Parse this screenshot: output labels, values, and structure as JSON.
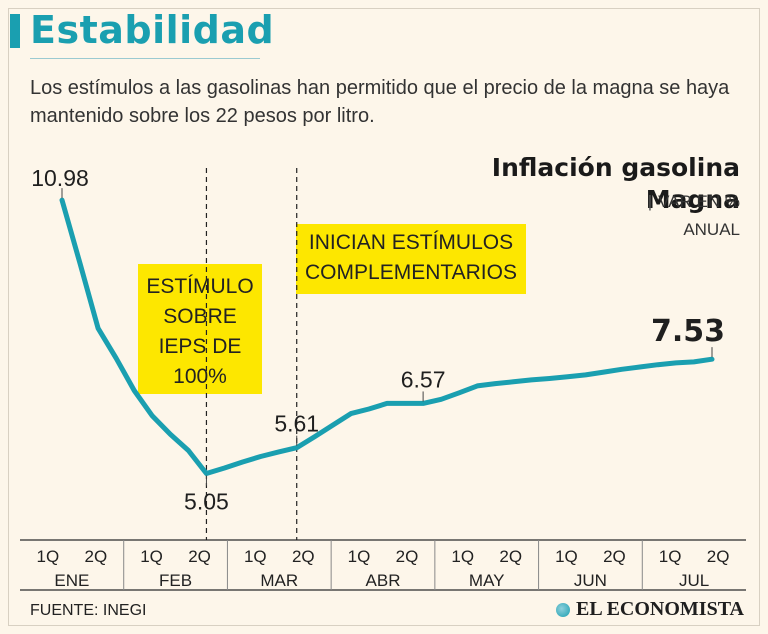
{
  "header": {
    "title": "Estabilidad",
    "subtitle": "Los estímulos a las gasolinas han permitido que el precio de la magna se haya mantenido sobre los 22 pesos por litro."
  },
  "legend": {
    "title_line1": "Inflación gasolina",
    "title_line2": "Magna",
    "unit_line1": "VAR EN %",
    "unit_line2": "ANUAL"
  },
  "annotations": {
    "box1": [
      "ESTÍMULO",
      "SOBRE",
      "IEPS DE",
      "100%"
    ],
    "box2": [
      "INICIAN ESTÍMULOS",
      "COMPLEMENTARIOS"
    ]
  },
  "footer": {
    "source": "FUENTE: INEGI",
    "brand": "EL ECONOMISTA"
  },
  "colors": {
    "line": "#1a9fb0",
    "highlight_box": "#fde700",
    "background": "#fdf6ea"
  },
  "chart_data": {
    "type": "line",
    "title": "Inflación gasolina Magna",
    "ylabel": "VAR EN % ANUAL",
    "ylim": [
      3.5,
      12.5
    ],
    "half_labels": [
      "1Q",
      "2Q"
    ],
    "months": [
      "ENE",
      "FEB",
      "MAR",
      "ABR",
      "MAY",
      "JUN",
      "JUL"
    ],
    "x": [
      0,
      1,
      2,
      3,
      4,
      5,
      6,
      7,
      8,
      9,
      10,
      11,
      12,
      13,
      14,
      15,
      16,
      17,
      18,
      19,
      20,
      21,
      22,
      23,
      24,
      25,
      26,
      27,
      28,
      29,
      30,
      31,
      32,
      33,
      34,
      35,
      36
    ],
    "series": [
      {
        "name": "Inflación gasolina Magna",
        "values": [
          10.98,
          9.6,
          8.2,
          7.55,
          6.85,
          6.3,
          5.9,
          5.55,
          5.05,
          5.17,
          5.3,
          5.42,
          5.52,
          5.61,
          5.85,
          6.1,
          6.35,
          6.45,
          6.57,
          6.57,
          6.57,
          6.66,
          6.8,
          6.95,
          7.0,
          7.04,
          7.08,
          7.11,
          7.15,
          7.19,
          7.25,
          7.31,
          7.36,
          7.41,
          7.45,
          7.47,
          7.53
        ]
      }
    ],
    "data_labels": [
      {
        "text": "10.98",
        "index": 0,
        "emphasis": false
      },
      {
        "text": "5.05",
        "index": 8,
        "emphasis": false
      },
      {
        "text": "5.61",
        "index": 13,
        "emphasis": false
      },
      {
        "text": "6.57",
        "index": 20,
        "emphasis": false
      },
      {
        "text": "7.53",
        "index": 36,
        "emphasis": true
      }
    ]
  }
}
